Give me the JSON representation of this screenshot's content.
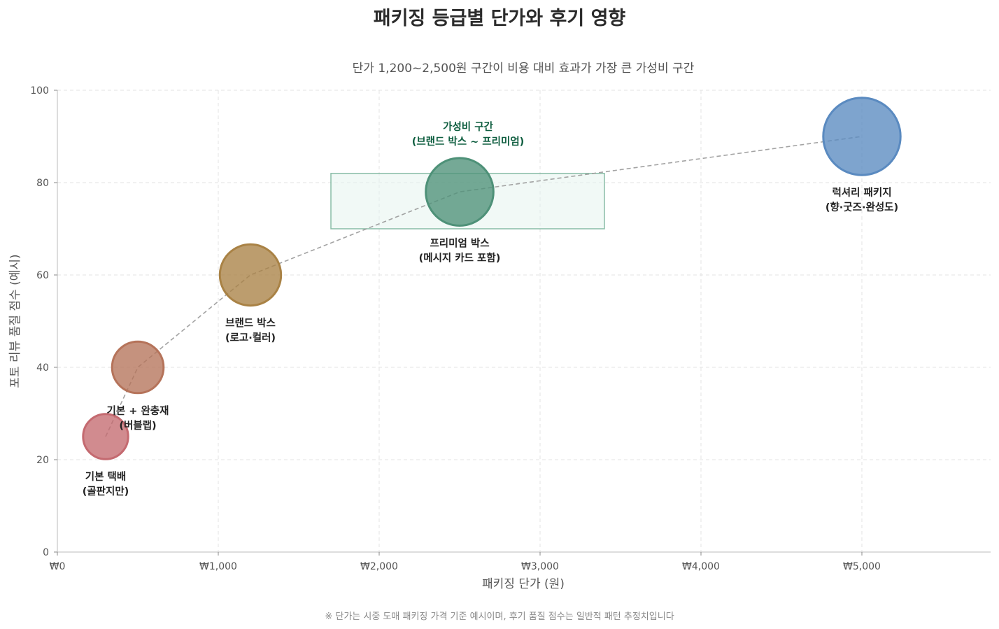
{
  "chart_data": {
    "type": "scatter",
    "title": "패키징 등급별 단가와 후기 영향",
    "subtitle": "단가 1,200~2,500원 구간이 비용 대비 효과가 가장 큰 가성비 구간",
    "xlabel": "패키징 단가 (원)",
    "ylabel": "포토 리뷰 품질 점수 (예시)",
    "xlim": [
      0,
      5800
    ],
    "ylim": [
      0,
      100
    ],
    "x_ticks": [
      0,
      1000,
      2000,
      3000,
      4000,
      5000
    ],
    "x_tick_labels": [
      "₩0",
      "₩1,000",
      "₩2,000",
      "₩3,000",
      "₩4,000",
      "₩5,000"
    ],
    "y_ticks": [
      0,
      20,
      40,
      60,
      80,
      100
    ],
    "y_tick_labels": [
      "0",
      "20",
      "40",
      "60",
      "80",
      "100"
    ],
    "grid": true,
    "trend_line": true,
    "points": [
      {
        "x": 300,
        "y": 25,
        "size": 14,
        "color": "#c46a70",
        "label": [
          "기본 택배",
          "(골판지만)"
        ]
      },
      {
        "x": 500,
        "y": 40,
        "size": 16,
        "color": "#b5735a",
        "label": [
          "기본 + 완충재",
          "(버블랩)"
        ]
      },
      {
        "x": 1200,
        "y": 60,
        "size": 19,
        "color": "#a98245",
        "label": [
          "브랜드 박스",
          "(로고·컬러)"
        ]
      },
      {
        "x": 2500,
        "y": 78,
        "size": 21,
        "color": "#4e9178",
        "label": [
          "프리미엄 박스",
          "(메시지 카드 포함)"
        ]
      },
      {
        "x": 5000,
        "y": 90,
        "size": 24,
        "color": "#5a8ac0",
        "label": [
          "럭셔리 패키지",
          "(향·굿즈·완성도)"
        ]
      }
    ],
    "highlight_zone": {
      "x_range": [
        1700,
        3400
      ],
      "y_range": [
        70,
        82
      ],
      "label": [
        "가성비 구간",
        "(브랜드 박스 ~ 프리미엄)"
      ],
      "fill": "#e6f4ee",
      "stroke": "#5aa383",
      "label_color": "#0f5e40"
    },
    "footnote": "※ 단가는 시중 도매 패키징 가격 기준 예시이며, 후기 품질 점수는 일반적 패턴 추정치입니다"
  }
}
